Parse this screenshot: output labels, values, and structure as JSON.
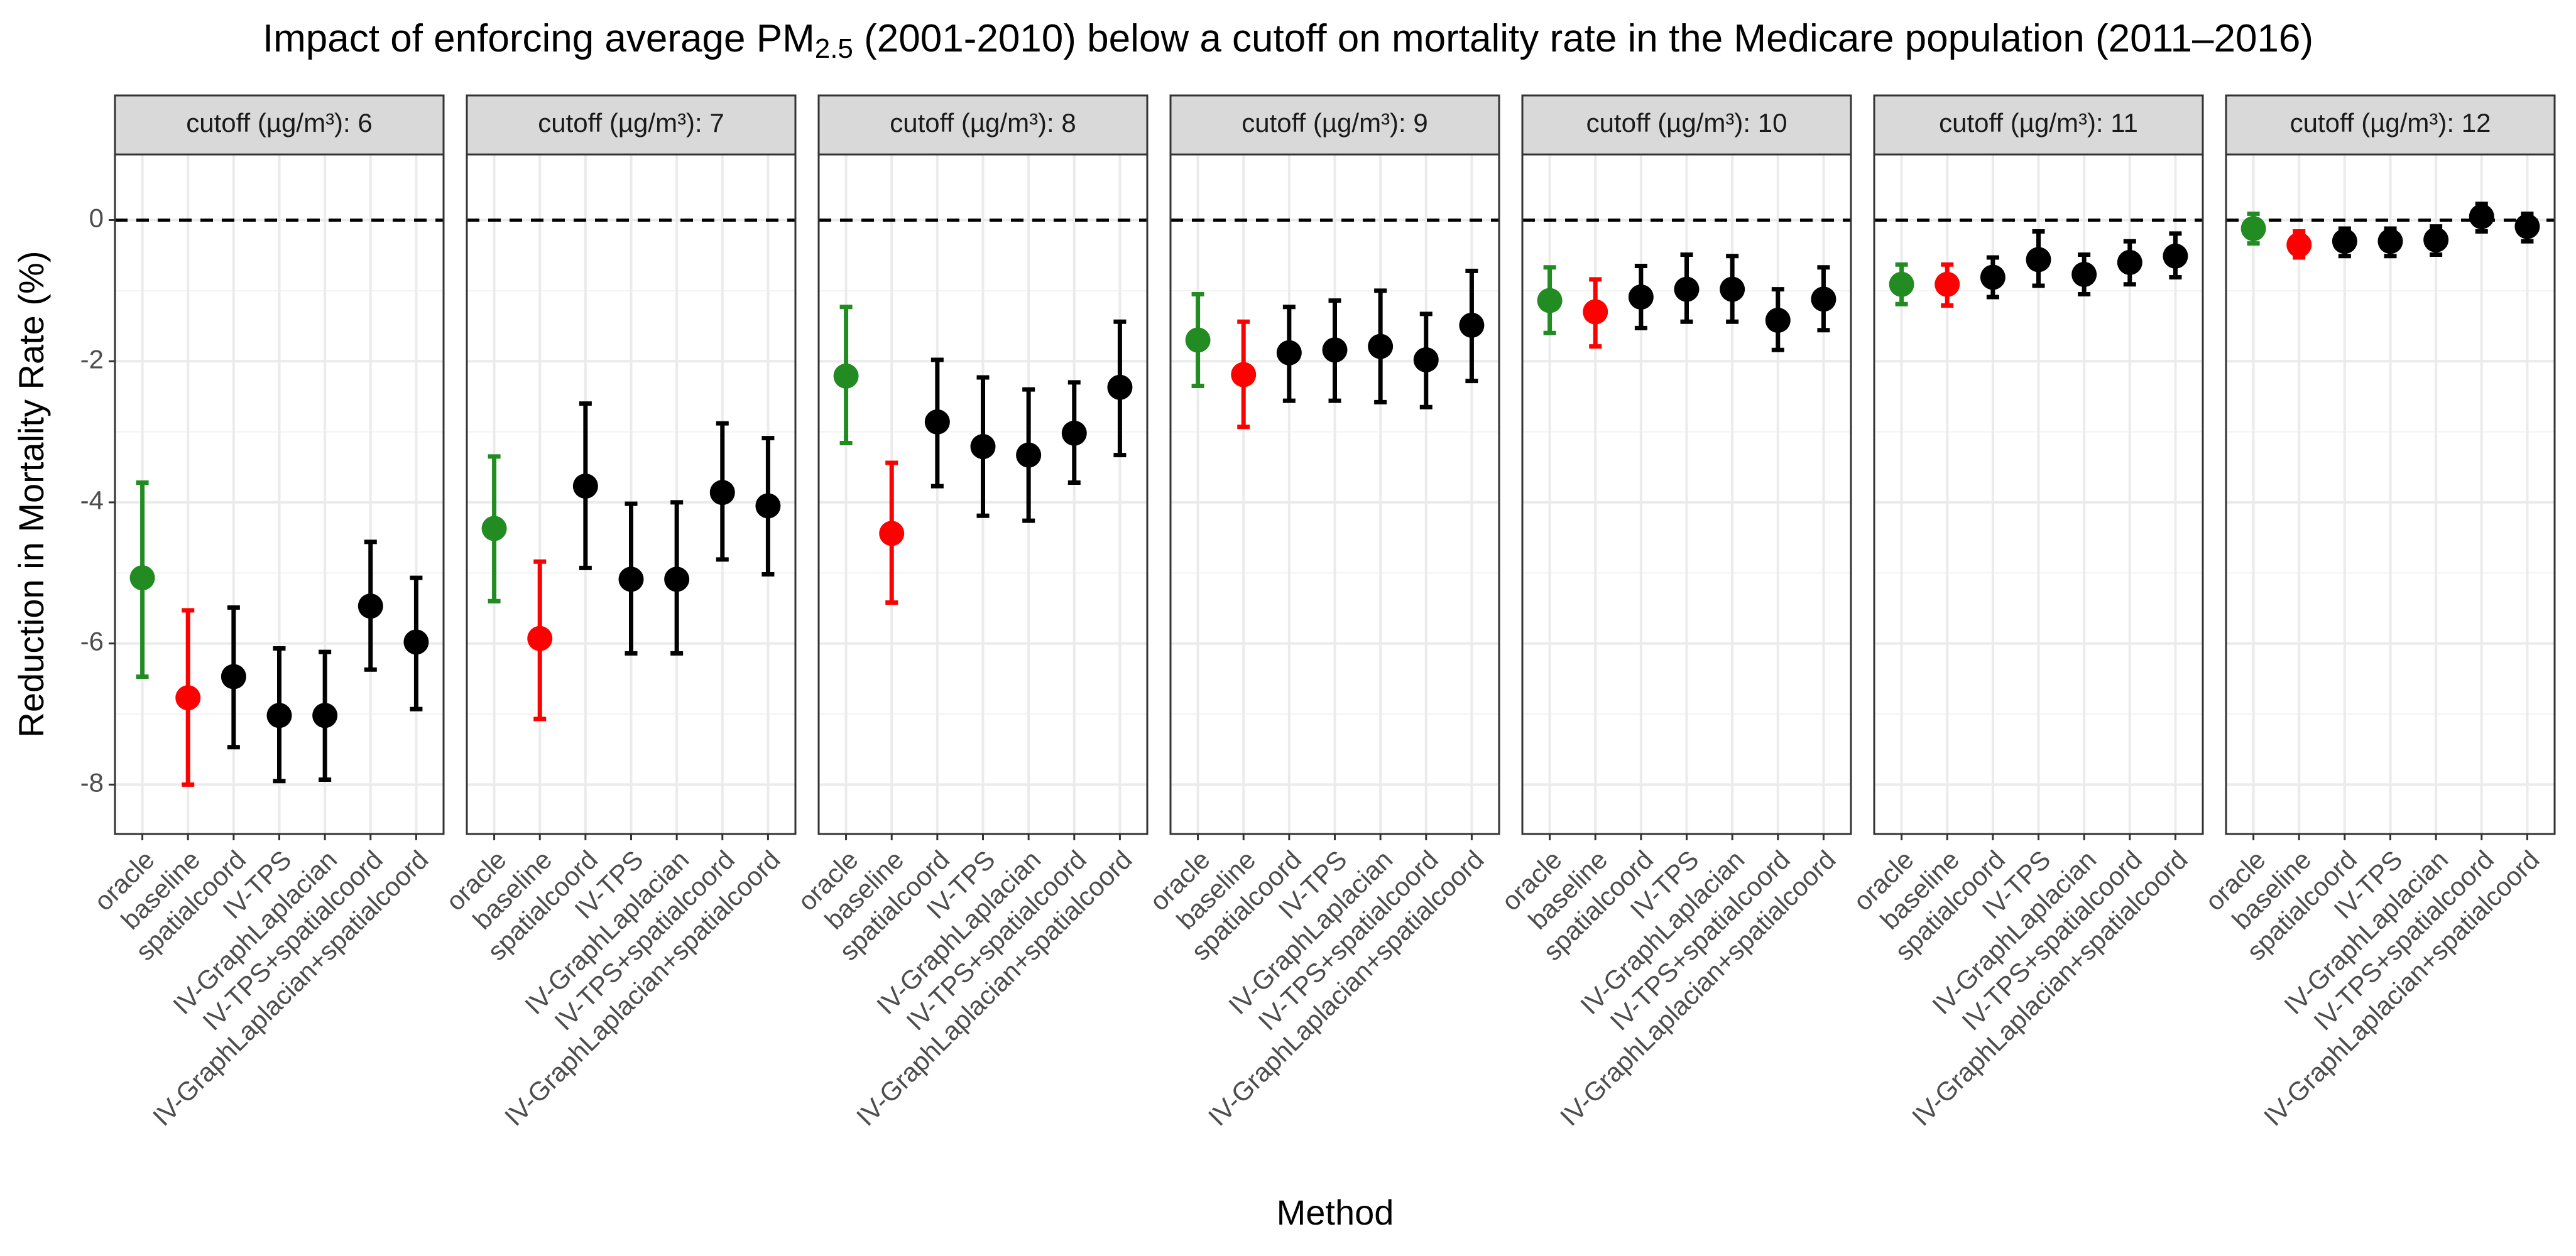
{
  "chart_data": {
    "type": "errorbar",
    "title": [
      "Impact of enforcing average PM",
      "2.5",
      " (2001-2010) below a cutoff on mortality rate in the Medicare population (2011–2016)"
    ],
    "x_label": "Method",
    "y_label": "Reduction in Mortality Rate (%)",
    "categories": [
      "oracle",
      "baseline",
      "spatialcoord",
      "IV-TPS",
      "IV-GraphLaplacian",
      "IV-TPS+spatialcoord",
      "IV-GraphLaplacian+spatialcoord"
    ],
    "colors": [
      "#228b22",
      "#ff0000",
      "#000000",
      "#000000",
      "#000000",
      "#000000",
      "#000000"
    ],
    "ylim": [
      -8.7,
      0.93
    ],
    "yticks": [
      0,
      -2,
      -4,
      -6,
      -8
    ],
    "minor_yticks": [
      -1,
      -3,
      -5,
      -7
    ],
    "grid": true,
    "reference_line": 0,
    "facets": [
      {
        "strip": "cutoff (µg/m³): 6",
        "values": [
          -5.07,
          -6.77,
          -6.47,
          -7.02,
          -7.02,
          -5.47,
          -5.98
        ],
        "lower": [
          -6.47,
          -8.0,
          -7.47,
          -7.95,
          -7.93,
          -6.37,
          -6.93
        ],
        "upper": [
          -3.72,
          -5.53,
          -5.49,
          -6.07,
          -6.12,
          -4.56,
          -5.07
        ]
      },
      {
        "strip": "cutoff (µg/m³): 7",
        "values": [
          -4.37,
          -5.93,
          -3.77,
          -5.09,
          -5.09,
          -3.86,
          -4.05
        ],
        "lower": [
          -5.4,
          -7.07,
          -4.93,
          -6.14,
          -6.14,
          -4.81,
          -5.02
        ],
        "upper": [
          -3.35,
          -4.84,
          -2.6,
          -4.02,
          -4.0,
          -2.88,
          -3.09
        ]
      },
      {
        "strip": "cutoff (µg/m³): 8",
        "values": [
          -2.21,
          -4.44,
          -2.86,
          -3.21,
          -3.33,
          -3.02,
          -2.37
        ],
        "lower": [
          -3.16,
          -5.42,
          -3.77,
          -4.19,
          -4.26,
          -3.72,
          -3.33
        ],
        "upper": [
          -1.23,
          -3.44,
          -1.98,
          -2.23,
          -2.4,
          -2.3,
          -1.44
        ]
      },
      {
        "strip": "cutoff (µg/m³): 9",
        "values": [
          -1.7,
          -2.19,
          -1.88,
          -1.84,
          -1.79,
          -1.98,
          -1.49
        ],
        "lower": [
          -2.35,
          -2.93,
          -2.56,
          -2.56,
          -2.58,
          -2.65,
          -2.28
        ],
        "upper": [
          -1.05,
          -1.44,
          -1.23,
          -1.14,
          -1.0,
          -1.33,
          -0.72
        ]
      },
      {
        "strip": "cutoff (µg/m³): 10",
        "values": [
          -1.14,
          -1.3,
          -1.09,
          -0.98,
          -0.98,
          -1.42,
          -1.12
        ],
        "lower": [
          -1.6,
          -1.79,
          -1.53,
          -1.44,
          -1.44,
          -1.84,
          -1.56
        ],
        "upper": [
          -0.67,
          -0.84,
          -0.65,
          -0.49,
          -0.51,
          -0.98,
          -0.67
        ]
      },
      {
        "strip": "cutoff (µg/m³): 11",
        "values": [
          -0.91,
          -0.91,
          -0.81,
          -0.56,
          -0.77,
          -0.6,
          -0.51
        ],
        "lower": [
          -1.19,
          -1.21,
          -1.09,
          -0.93,
          -1.05,
          -0.91,
          -0.81
        ],
        "upper": [
          -0.63,
          -0.63,
          -0.53,
          -0.16,
          -0.49,
          -0.3,
          -0.19
        ]
      },
      {
        "strip": "cutoff (µg/m³): 12",
        "values": [
          -0.12,
          -0.35,
          -0.3,
          -0.3,
          -0.28,
          0.05,
          -0.09
        ],
        "lower": [
          -0.33,
          -0.53,
          -0.51,
          -0.51,
          -0.49,
          -0.16,
          -0.3
        ],
        "upper": [
          0.09,
          -0.16,
          -0.12,
          -0.12,
          -0.09,
          0.23,
          0.09
        ]
      }
    ]
  }
}
